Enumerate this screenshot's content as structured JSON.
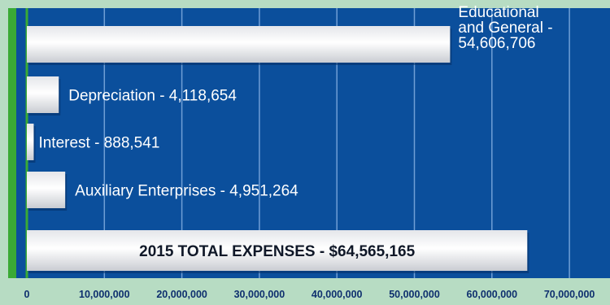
{
  "chart_data": {
    "type": "bar",
    "orientation": "horizontal",
    "categories": [
      "Educational and General",
      "Depreciation",
      "Interest",
      "Auxiliary Enterprises",
      "2015 TOTAL EXPENSES"
    ],
    "values": [
      54606706,
      4118654,
      888541,
      4951264,
      64565165
    ],
    "data_labels": [
      [
        "Educational",
        "and General -",
        "54,606,706"
      ],
      [
        "Depreciation - 4,118,654"
      ],
      [
        "Interest - 888,541"
      ],
      [
        "Auxiliary Enterprises - 4,951,264"
      ],
      [
        "2015 TOTAL EXPENSES - $64,565,165"
      ]
    ],
    "x_ticks": [
      0,
      10000000,
      20000000,
      30000000,
      40000000,
      50000000,
      60000000,
      70000000
    ],
    "x_tick_labels": [
      "0",
      "10,000,000",
      "20,000,000",
      "30,000,000",
      "40,000,000",
      "50,000,000",
      "60,000,000",
      "70,000,000"
    ],
    "xlim": [
      0,
      75000000
    ],
    "grid": true,
    "colors": {
      "plot_background": "#0b4f9c",
      "gridline": "#6f9fd6",
      "bar_fill": "#ffffff",
      "axis_line": "#3aaa35",
      "axis_band": "#b7dcc3",
      "tick_text": "#0e2f6e",
      "label_text": "#ffffff",
      "total_label_text": "#101828"
    }
  }
}
